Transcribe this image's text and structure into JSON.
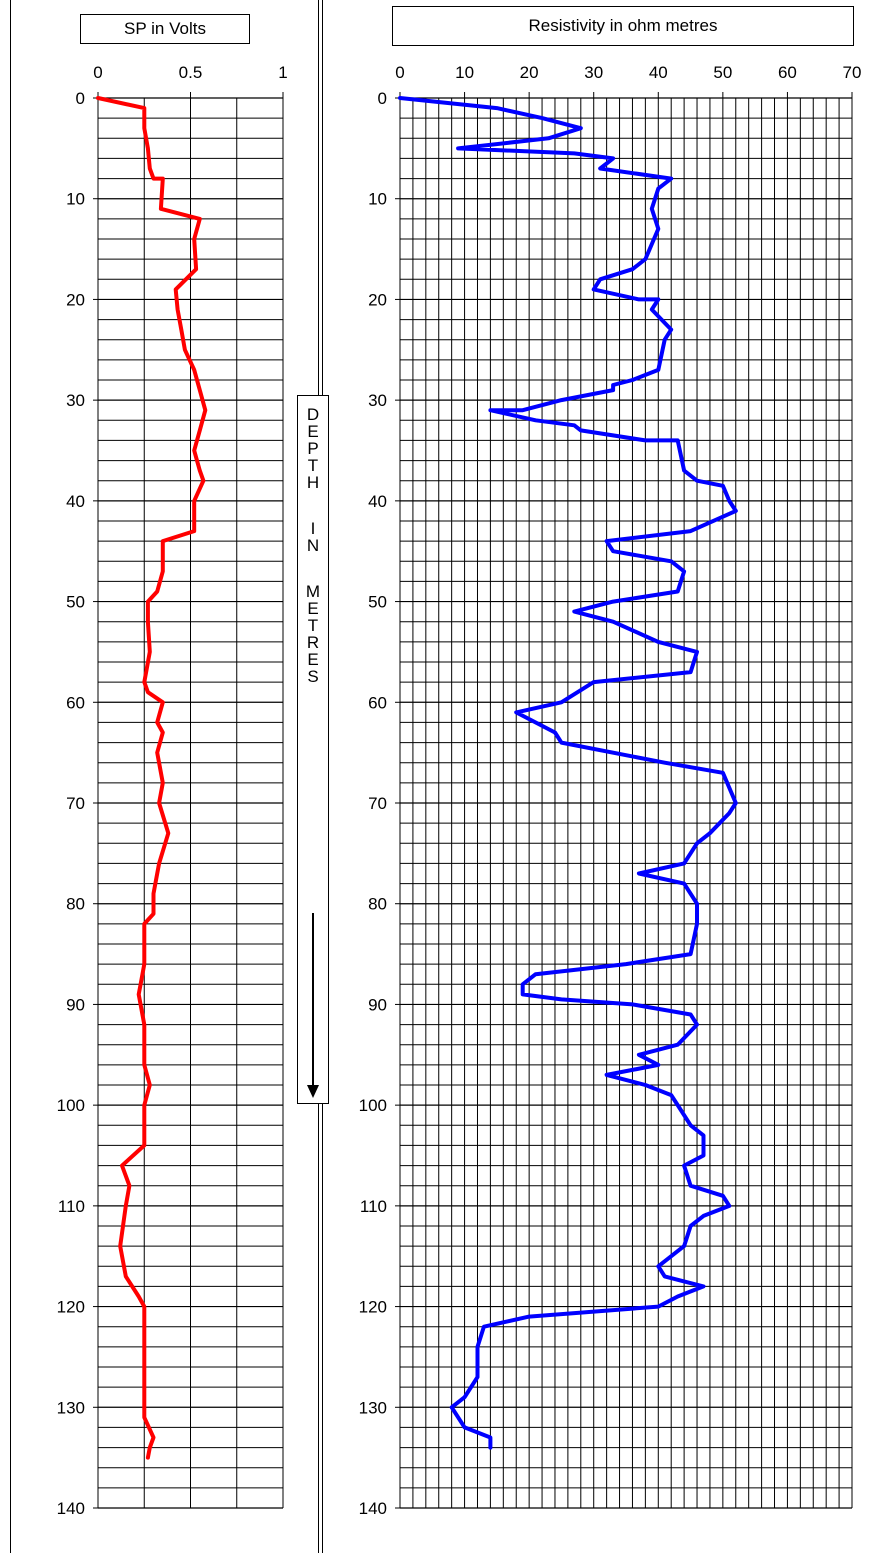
{
  "chart_data": [
    {
      "type": "line",
      "title": "SP in Volts",
      "xlim": [
        0,
        1
      ],
      "xticks": [
        0,
        0.5,
        1
      ],
      "xtick_labels": [
        "0",
        "0.5",
        "1"
      ],
      "ylim": [
        0,
        140
      ],
      "yticks": [
        0,
        10,
        20,
        30,
        40,
        50,
        60,
        70,
        80,
        90,
        100,
        110,
        120,
        130,
        140
      ],
      "y_inverted": true,
      "grid": true,
      "series": [
        {
          "color": "#ff0000",
          "points": [
            [
              0,
              0
            ],
            [
              0.25,
              1
            ],
            [
              0.25,
              3
            ],
            [
              0.27,
              5
            ],
            [
              0.28,
              7
            ],
            [
              0.3,
              8
            ],
            [
              0.35,
              8
            ],
            [
              0.34,
              11
            ],
            [
              0.55,
              12
            ],
            [
              0.52,
              14
            ],
            [
              0.53,
              17
            ],
            [
              0.42,
              19
            ],
            [
              0.43,
              21
            ],
            [
              0.45,
              23
            ],
            [
              0.47,
              25
            ],
            [
              0.52,
              27
            ],
            [
              0.55,
              29
            ],
            [
              0.58,
              31
            ],
            [
              0.55,
              33
            ],
            [
              0.52,
              35
            ],
            [
              0.55,
              37
            ],
            [
              0.57,
              38
            ],
            [
              0.52,
              40
            ],
            [
              0.52,
              43
            ],
            [
              0.35,
              44
            ],
            [
              0.35,
              47
            ],
            [
              0.32,
              49
            ],
            [
              0.27,
              50
            ],
            [
              0.27,
              52
            ],
            [
              0.28,
              55
            ],
            [
              0.25,
              58
            ],
            [
              0.27,
              59
            ],
            [
              0.35,
              60
            ],
            [
              0.32,
              62
            ],
            [
              0.35,
              63
            ],
            [
              0.32,
              65
            ],
            [
              0.35,
              68
            ],
            [
              0.33,
              70
            ],
            [
              0.38,
              73
            ],
            [
              0.33,
              76
            ],
            [
              0.3,
              79
            ],
            [
              0.3,
              81
            ],
            [
              0.25,
              82
            ],
            [
              0.25,
              86
            ],
            [
              0.23,
              88
            ],
            [
              0.22,
              89
            ],
            [
              0.25,
              92
            ],
            [
              0.25,
              96
            ],
            [
              0.28,
              98
            ],
            [
              0.25,
              100
            ],
            [
              0.25,
              104
            ],
            [
              0.13,
              106
            ],
            [
              0.17,
              108
            ],
            [
              0.15,
              110
            ],
            [
              0.12,
              114
            ],
            [
              0.15,
              117
            ],
            [
              0.22,
              119
            ],
            [
              0.25,
              120
            ],
            [
              0.25,
              125
            ],
            [
              0.25,
              128
            ],
            [
              0.25,
              131
            ],
            [
              0.3,
              133
            ],
            [
              0.28,
              134
            ],
            [
              0.27,
              135
            ]
          ]
        }
      ]
    },
    {
      "type": "line",
      "title": "Resistivity in ohm metres",
      "xlim": [
        0,
        70
      ],
      "xticks": [
        0,
        10,
        20,
        30,
        40,
        50,
        60,
        70
      ],
      "xtick_labels": [
        "0",
        "10",
        "20",
        "30",
        "40",
        "50",
        "60",
        "70"
      ],
      "ylim": [
        0,
        140
      ],
      "yticks": [
        0,
        10,
        20,
        30,
        40,
        50,
        60,
        70,
        80,
        90,
        100,
        110,
        120,
        130,
        140
      ],
      "y_inverted": true,
      "grid": true,
      "series": [
        {
          "color": "#0000ff",
          "points": [
            [
              0,
              0
            ],
            [
              15,
              1
            ],
            [
              22,
              2
            ],
            [
              28,
              3
            ],
            [
              23,
              4
            ],
            [
              9,
              5
            ],
            [
              27,
              5.5
            ],
            [
              33,
              6
            ],
            [
              31,
              7
            ],
            [
              42,
              8
            ],
            [
              40,
              9
            ],
            [
              39,
              11
            ],
            [
              40,
              13
            ],
            [
              38,
              16
            ],
            [
              36,
              17
            ],
            [
              31,
              18
            ],
            [
              30,
              19
            ],
            [
              37,
              20
            ],
            [
              40,
              20
            ],
            [
              39,
              21
            ],
            [
              42,
              23
            ],
            [
              41,
              24
            ],
            [
              40,
              27
            ],
            [
              36,
              28
            ],
            [
              33,
              28.5
            ],
            [
              33,
              29
            ],
            [
              25,
              30
            ],
            [
              19,
              31
            ],
            [
              14,
              31
            ],
            [
              21,
              32
            ],
            [
              27,
              32.5
            ],
            [
              28,
              33
            ],
            [
              38,
              34
            ],
            [
              43,
              34
            ],
            [
              44,
              37
            ],
            [
              46,
              38
            ],
            [
              50,
              38.5
            ],
            [
              51,
              40
            ],
            [
              52,
              41
            ],
            [
              45,
              43
            ],
            [
              32,
              44
            ],
            [
              33,
              45
            ],
            [
              42,
              46
            ],
            [
              44,
              47
            ],
            [
              43,
              49
            ],
            [
              33,
              50
            ],
            [
              27,
              51
            ],
            [
              33,
              52
            ],
            [
              40,
              54
            ],
            [
              46,
              55
            ],
            [
              45,
              57
            ],
            [
              30,
              58
            ],
            [
              25,
              60
            ],
            [
              18,
              61
            ],
            [
              24,
              63
            ],
            [
              25,
              64
            ],
            [
              41,
              66
            ],
            [
              50,
              67
            ],
            [
              52,
              70
            ],
            [
              51,
              71
            ],
            [
              48,
              73
            ],
            [
              46,
              74
            ],
            [
              44,
              76
            ],
            [
              37,
              77
            ],
            [
              44,
              78
            ],
            [
              46,
              80
            ],
            [
              46,
              82
            ],
            [
              45,
              85
            ],
            [
              35,
              86
            ],
            [
              21,
              87
            ],
            [
              19,
              88
            ],
            [
              19,
              89
            ],
            [
              25,
              89.5
            ],
            [
              36,
              90
            ],
            [
              45,
              91
            ],
            [
              46,
              92
            ],
            [
              43,
              94
            ],
            [
              37,
              95
            ],
            [
              40,
              96
            ],
            [
              32,
              97
            ],
            [
              38,
              98
            ],
            [
              42,
              99
            ],
            [
              43,
              100
            ],
            [
              45,
              102
            ],
            [
              47,
              103
            ],
            [
              47,
              105
            ],
            [
              44,
              106
            ],
            [
              45,
              108
            ],
            [
              50,
              109
            ],
            [
              51,
              110
            ],
            [
              47,
              111
            ],
            [
              45,
              112
            ],
            [
              44,
              114
            ],
            [
              40,
              116
            ],
            [
              41,
              117
            ],
            [
              47,
              118
            ],
            [
              43,
              119
            ],
            [
              40,
              120
            ],
            [
              20,
              121
            ],
            [
              13,
              122
            ],
            [
              12,
              124
            ],
            [
              12,
              126
            ],
            [
              12,
              127
            ],
            [
              10,
              129
            ],
            [
              8,
              130
            ],
            [
              10,
              132
            ],
            [
              14,
              133
            ],
            [
              14,
              134
            ]
          ]
        }
      ]
    }
  ],
  "depth_label": "DEPTH IN METRES"
}
